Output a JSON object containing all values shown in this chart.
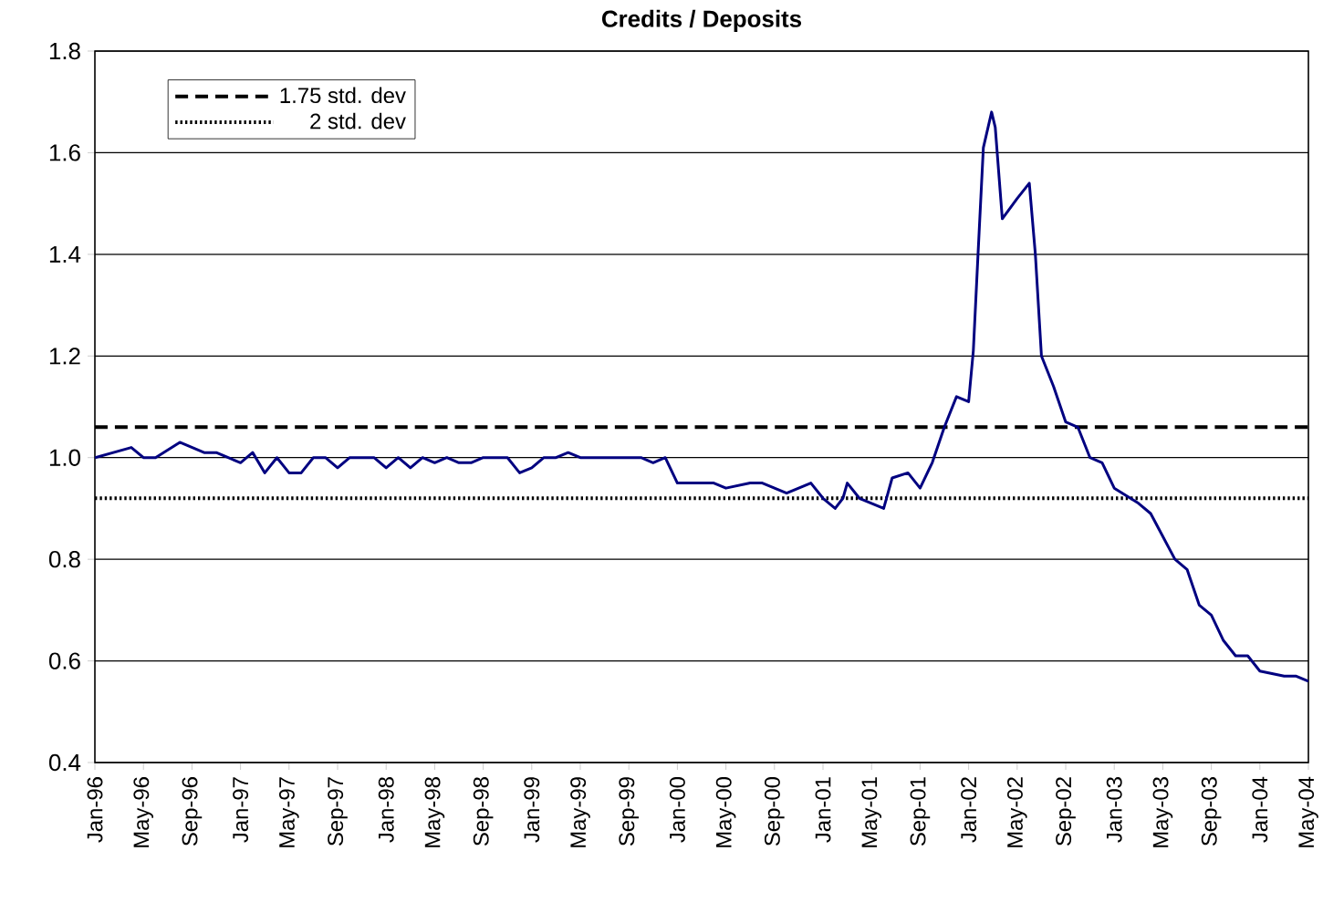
{
  "chart_data": {
    "type": "line",
    "title": "Credits / Deposits",
    "color": "#000080",
    "x": [
      "1996-01",
      "1996-04",
      "1996-05",
      "1996-06",
      "1996-08",
      "1996-10",
      "1996-11",
      "1997-01",
      "1997-02",
      "1997-03",
      "1997-04",
      "1997-05",
      "1997-06",
      "1997-07",
      "1997-08",
      "1997-09",
      "1997-10",
      "1997-12",
      "1998-01",
      "1998-02",
      "1998-03",
      "1998-04",
      "1998-05",
      "1998-06",
      "1998-07",
      "1998-08",
      "1998-09",
      "1998-11",
      "1998-12",
      "1999-01",
      "1999-02",
      "1999-03",
      "1999-04",
      "1999-05",
      "1999-08",
      "1999-10",
      "1999-11",
      "1999-12",
      "2000-01",
      "2000-02",
      "2000-04",
      "2000-05",
      "2000-07",
      "2000-08",
      "2000-09",
      "2000-10",
      "2000-11",
      "2000-12",
      "2001-01",
      "2001-02",
      "2001-02-19",
      "2001-03",
      "2001-04",
      "2001-05",
      "2001-06",
      "2001-06-22",
      "2001-08",
      "2001-09",
      "2001-10",
      "2001-11",
      "2001-12",
      "2002-01",
      "2002-01-13",
      "2002-01-25",
      "2002-02-07",
      "2002-02-26",
      "2002-03-07",
      "2002-03-25",
      "2002-05",
      "2002-06",
      "2002-06-16",
      "2002-07",
      "2002-08",
      "2002-09",
      "2002-10",
      "2002-11",
      "2002-12",
      "2003-01",
      "2003-03",
      "2003-04",
      "2003-06",
      "2003-07",
      "2003-08",
      "2003-09",
      "2003-10",
      "2003-11",
      "2003-12",
      "2004-01",
      "2004-03",
      "2004-04",
      "2004-05"
    ],
    "values": [
      1.0,
      1.02,
      1.0,
      1.0,
      1.03,
      1.01,
      1.01,
      0.99,
      1.01,
      0.97,
      1.0,
      0.97,
      0.97,
      1.0,
      1.0,
      0.98,
      1.0,
      1.0,
      0.98,
      1.0,
      0.98,
      1.0,
      0.99,
      1.0,
      0.99,
      0.99,
      1.0,
      1.0,
      0.97,
      0.98,
      1.0,
      1.0,
      1.01,
      1.0,
      1.0,
      1.0,
      0.99,
      1.0,
      0.95,
      0.95,
      0.95,
      0.94,
      0.95,
      0.95,
      0.94,
      0.93,
      0.94,
      0.95,
      0.92,
      0.9,
      0.92,
      0.95,
      0.92,
      0.91,
      0.9,
      0.96,
      0.97,
      0.94,
      0.99,
      1.06,
      1.12,
      1.11,
      1.21,
      1.4,
      1.61,
      1.68,
      1.65,
      1.47,
      1.51,
      1.54,
      1.4,
      1.2,
      1.14,
      1.07,
      1.06,
      1.0,
      0.99,
      0.94,
      0.91,
      0.89,
      0.8,
      0.78,
      0.71,
      0.69,
      0.64,
      0.61,
      0.61,
      0.58,
      0.57,
      0.57,
      0.56
    ],
    "xlim": [
      "1996-01",
      "2004-05"
    ],
    "xticks": [
      {
        "value": "1996-01",
        "label": "Jan-96"
      },
      {
        "value": "1996-05",
        "label": "May-96"
      },
      {
        "value": "1996-09",
        "label": "Sep-96"
      },
      {
        "value": "1997-01",
        "label": "Jan-97"
      },
      {
        "value": "1997-05",
        "label": "May-97"
      },
      {
        "value": "1997-09",
        "label": "Sep-97"
      },
      {
        "value": "1998-01",
        "label": "Jan-98"
      },
      {
        "value": "1998-05",
        "label": "May-98"
      },
      {
        "value": "1998-09",
        "label": "Sep-98"
      },
      {
        "value": "1999-01",
        "label": "Jan-99"
      },
      {
        "value": "1999-05",
        "label": "May-99"
      },
      {
        "value": "1999-09",
        "label": "Sep-99"
      },
      {
        "value": "2000-01",
        "label": "Jan-00"
      },
      {
        "value": "2000-05",
        "label": "May-00"
      },
      {
        "value": "2000-09",
        "label": "Sep-00"
      },
      {
        "value": "2001-01",
        "label": "Jan-01"
      },
      {
        "value": "2001-05",
        "label": "May-01"
      },
      {
        "value": "2001-09",
        "label": "Sep-01"
      },
      {
        "value": "2002-01",
        "label": "Jan-02"
      },
      {
        "value": "2002-05",
        "label": "May-02"
      },
      {
        "value": "2002-09",
        "label": "Sep-02"
      },
      {
        "value": "2003-01",
        "label": "Jan-03"
      },
      {
        "value": "2003-05",
        "label": "May-03"
      },
      {
        "value": "2003-09",
        "label": "Sep-03"
      },
      {
        "value": "2004-01",
        "label": "Jan-04"
      },
      {
        "value": "2004-05",
        "label": "May-04"
      }
    ],
    "ylim": [
      0.4,
      1.8
    ],
    "yticks": [
      {
        "value": 0.4,
        "label": "0.4"
      },
      {
        "value": 0.6,
        "label": "0.6"
      },
      {
        "value": 0.8,
        "label": "0.8"
      },
      {
        "value": 1.0,
        "label": "1.0"
      },
      {
        "value": 1.2,
        "label": "1.2"
      },
      {
        "value": 1.4,
        "label": "1.4"
      },
      {
        "value": 1.6,
        "label": "1.6"
      },
      {
        "value": 1.8,
        "label": "1.8"
      }
    ],
    "ref_lines": [
      {
        "axis": "y",
        "value": 1.06,
        "label": "1.75 std. dev",
        "line_style": "dashed",
        "color": "#000000"
      },
      {
        "axis": "y",
        "value": 0.92,
        "label": "2 std. dev",
        "line_style": "dotted",
        "color": "#000000"
      }
    ],
    "grid": "y",
    "legend": "top left"
  }
}
